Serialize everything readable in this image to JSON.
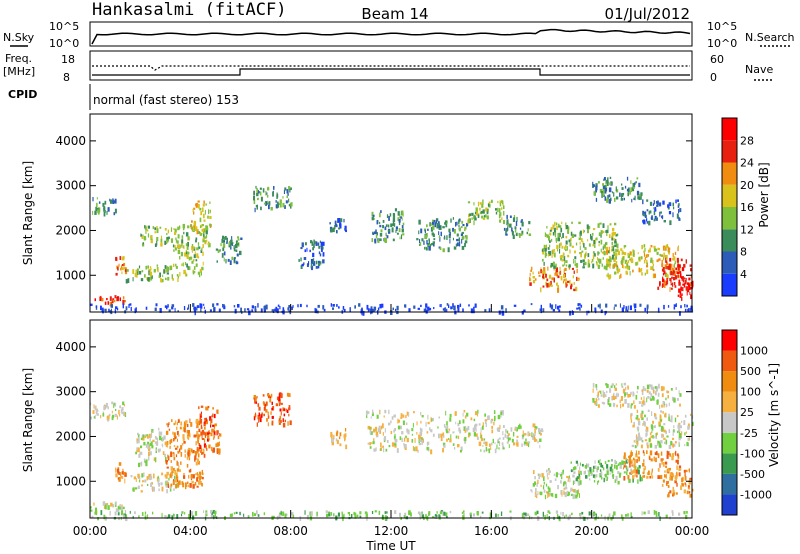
{
  "header": {
    "station": "Hankasalmi (fitACF)",
    "beam": "Beam 14",
    "date": "01/Jul/2012"
  },
  "summary_panels": {
    "nsky_label": "N.Sky",
    "nsearch_label": "N.Search",
    "freq_label_line1": "Freq.",
    "freq_label_line2": "[MHz]",
    "nave_label": "Nave",
    "cpid_label": "CPID",
    "cpid_text": "normal (fast stereo) 153",
    "noise_ticks": [
      "10^5",
      "10^0"
    ],
    "freq_ticks": [
      "18",
      "8"
    ],
    "nave_ticks": [
      "60",
      "0"
    ]
  },
  "chart_data": [
    {
      "type": "heatmap",
      "title": "",
      "xlabel": "",
      "ylabel": "Slant Range [km]",
      "xlim": [
        0,
        24
      ],
      "ylim": [
        180,
        4600
      ],
      "yticks": [
        "1000",
        "2000",
        "3000",
        "4000"
      ],
      "colorbar_label": "Power [dB]",
      "colorbar_ticks": [
        "4",
        "8",
        "12",
        "16",
        "20",
        "24",
        "28"
      ],
      "colorbar_colors": [
        "#1a3cff",
        "#2c5cb8",
        "#3a8c5a",
        "#7ec03c",
        "#d9c21c",
        "#f08c10",
        "#e82010",
        "#ff0000"
      ],
      "scatter_regions": [
        {
          "t": [
            0.0,
            1.6
          ],
          "r": [
            400,
            560
          ],
          "level": 6
        },
        {
          "t": [
            0.0,
            1.0
          ],
          "r": [
            2400,
            2800
          ],
          "level": 2
        },
        {
          "t": [
            1.0,
            1.4
          ],
          "r": [
            1050,
            1450
          ],
          "level": 5
        },
        {
          "t": [
            1.4,
            3.5
          ],
          "r": [
            900,
            1250
          ],
          "level": 3
        },
        {
          "t": [
            2.0,
            4.8
          ],
          "r": [
            1700,
            2150
          ],
          "level": 3
        },
        {
          "t": [
            3.3,
            4.5
          ],
          "r": [
            1000,
            1700
          ],
          "level": 3
        },
        {
          "t": [
            4.0,
            4.8
          ],
          "r": [
            2000,
            2700
          ],
          "level": 4
        },
        {
          "t": [
            5.0,
            6.0
          ],
          "r": [
            1300,
            1900
          ],
          "level": 2
        },
        {
          "t": [
            6.5,
            8.0
          ],
          "r": [
            2500,
            3000
          ],
          "level": 2
        },
        {
          "t": [
            8.3,
            9.3
          ],
          "r": [
            1200,
            1800
          ],
          "level": 1
        },
        {
          "t": [
            9.5,
            10.2
          ],
          "r": [
            2000,
            2300
          ],
          "level": 1
        },
        {
          "t": [
            11.2,
            12.5
          ],
          "r": [
            1800,
            2500
          ],
          "level": 2
        },
        {
          "t": [
            13.0,
            15.0
          ],
          "r": [
            1600,
            2300
          ],
          "level": 2
        },
        {
          "t": [
            15.0,
            16.5
          ],
          "r": [
            2200,
            2700
          ],
          "level": 3
        },
        {
          "t": [
            16.5,
            17.5
          ],
          "r": [
            1900,
            2350
          ],
          "level": 2
        },
        {
          "t": [
            17.5,
            19.5
          ],
          "r": [
            700,
            1200
          ],
          "level": 5
        },
        {
          "t": [
            18.0,
            21.0
          ],
          "r": [
            1200,
            2200
          ],
          "level": 3
        },
        {
          "t": [
            20.0,
            22.0
          ],
          "r": [
            2700,
            3200
          ],
          "level": 2
        },
        {
          "t": [
            22.0,
            23.5
          ],
          "r": [
            2200,
            2700
          ],
          "level": 1
        },
        {
          "t": [
            20.5,
            23.5
          ],
          "r": [
            1000,
            1700
          ],
          "level": 4
        },
        {
          "t": [
            22.6,
            24.0
          ],
          "r": [
            700,
            1400
          ],
          "level": 6
        },
        {
          "t": [
            23.4,
            24.0
          ],
          "r": [
            500,
            1000
          ],
          "level": 7
        },
        {
          "t": [
            0.0,
            24.0
          ],
          "r": [
            200,
            380
          ],
          "level": 0
        }
      ]
    },
    {
      "type": "heatmap",
      "title": "",
      "xlabel": "Time UT",
      "ylabel": "Slant Range [km]",
      "xlim": [
        0,
        24
      ],
      "ylim": [
        180,
        4600
      ],
      "xticks": [
        "00:00",
        "04:00",
        "08:00",
        "12:00",
        "16:00",
        "20:00",
        "00:00"
      ],
      "yticks": [
        "1000",
        "2000",
        "3000",
        "4000"
      ],
      "colorbar_label": "Velocity [m s^-1]",
      "colorbar_ticks": [
        "1000",
        "500",
        "100",
        "25",
        "-25",
        "-100",
        "-500",
        "-1000"
      ],
      "colorbar_colors": [
        "#2040d0",
        "#2f6fa0",
        "#3a9a50",
        "#70d040",
        "#c8c8c8",
        "#f5b040",
        "#f08c10",
        "#f05a10",
        "#ff0000"
      ],
      "scatter_regions": [
        {
          "t": [
            0.0,
            1.4
          ],
          "r": [
            2400,
            2800
          ],
          "level": 4
        },
        {
          "t": [
            0.0,
            1.6
          ],
          "r": [
            350,
            560
          ],
          "level": 4
        },
        {
          "t": [
            1.0,
            1.4
          ],
          "r": [
            1050,
            1450
          ],
          "level": 6
        },
        {
          "t": [
            1.5,
            3.5
          ],
          "r": [
            800,
            1200
          ],
          "level": 4
        },
        {
          "t": [
            1.8,
            3.0
          ],
          "r": [
            1400,
            2200
          ],
          "level": 4
        },
        {
          "t": [
            3.0,
            4.5
          ],
          "r": [
            900,
            2400
          ],
          "level": 6
        },
        {
          "t": [
            4.2,
            5.2
          ],
          "r": [
            1600,
            2700
          ],
          "level": 7
        },
        {
          "t": [
            6.5,
            8.0
          ],
          "r": [
            2300,
            3000
          ],
          "level": 7
        },
        {
          "t": [
            9.5,
            10.2
          ],
          "r": [
            1800,
            2200
          ],
          "level": 5
        },
        {
          "t": [
            11.0,
            16.5
          ],
          "r": [
            1700,
            2600
          ],
          "level": 4
        },
        {
          "t": [
            16.5,
            18.0
          ],
          "r": [
            1800,
            2300
          ],
          "level": 4
        },
        {
          "t": [
            17.5,
            19.5
          ],
          "r": [
            700,
            1300
          ],
          "level": 4
        },
        {
          "t": [
            19.0,
            22.0
          ],
          "r": [
            1000,
            1500
          ],
          "level": 3
        },
        {
          "t": [
            20.0,
            23.5
          ],
          "r": [
            2700,
            3200
          ],
          "level": 4
        },
        {
          "t": [
            21.5,
            24.0
          ],
          "r": [
            1800,
            2600
          ],
          "level": 4
        },
        {
          "t": [
            21.2,
            23.5
          ],
          "r": [
            1100,
            1700
          ],
          "level": 6
        },
        {
          "t": [
            22.8,
            24.0
          ],
          "r": [
            700,
            1300
          ],
          "level": 6
        },
        {
          "t": [
            0.0,
            24.0
          ],
          "r": [
            200,
            360
          ],
          "level": 3
        }
      ]
    }
  ]
}
